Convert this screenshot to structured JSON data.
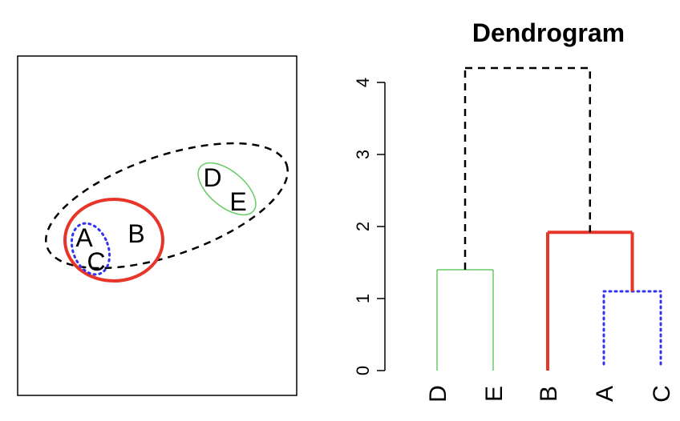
{
  "cluster_plot": {
    "points": [
      {
        "label": "A",
        "x": 105,
        "y": 297
      },
      {
        "label": "B",
        "x": 170,
        "y": 292
      },
      {
        "label": "C",
        "x": 120,
        "y": 327
      },
      {
        "label": "D",
        "x": 265,
        "y": 222
      },
      {
        "label": "E",
        "x": 297,
        "y": 252
      }
    ]
  },
  "dendrogram": {
    "title": "Dendrogram",
    "y_ticks": [
      "0",
      "1",
      "2",
      "3",
      "4"
    ],
    "leaves": [
      "D",
      "E",
      "B",
      "A",
      "C"
    ],
    "merges": [
      {
        "members": [
          "A",
          "C"
        ],
        "height": 1.1,
        "style": "dotted",
        "color": "#3333ee"
      },
      {
        "members": [
          "D",
          "E"
        ],
        "height": 1.4,
        "style": "solid",
        "color": "#66cc66"
      },
      {
        "members": [
          "B",
          "A",
          "C"
        ],
        "height": 1.92,
        "style": "solid",
        "color": "#e8352a"
      },
      {
        "members": [
          "D",
          "E",
          "B",
          "A",
          "C"
        ],
        "height": 4.2,
        "style": "dashed",
        "color": "#000000"
      }
    ]
  }
}
